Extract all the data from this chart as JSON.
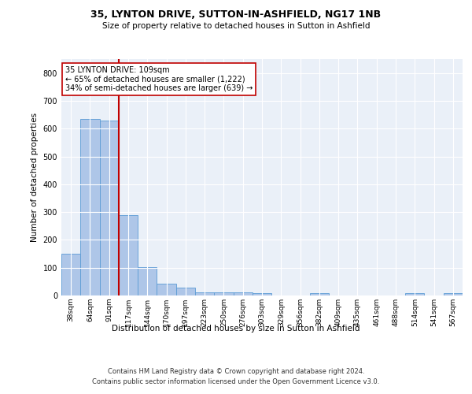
{
  "title1": "35, LYNTON DRIVE, SUTTON-IN-ASHFIELD, NG17 1NB",
  "title2": "Size of property relative to detached houses in Sutton in Ashfield",
  "xlabel": "Distribution of detached houses by size in Sutton in Ashfield",
  "ylabel": "Number of detached properties",
  "footer1": "Contains HM Land Registry data © Crown copyright and database right 2024.",
  "footer2": "Contains public sector information licensed under the Open Government Licence v3.0.",
  "bar_labels": [
    "38sqm",
    "64sqm",
    "91sqm",
    "117sqm",
    "144sqm",
    "170sqm",
    "197sqm",
    "223sqm",
    "250sqm",
    "276sqm",
    "303sqm",
    "329sqm",
    "356sqm",
    "382sqm",
    "409sqm",
    "435sqm",
    "461sqm",
    "488sqm",
    "514sqm",
    "541sqm",
    "567sqm"
  ],
  "bar_values": [
    150,
    635,
    628,
    290,
    103,
    42,
    28,
    12,
    12,
    10,
    9,
    0,
    0,
    8,
    0,
    0,
    0,
    0,
    8,
    0,
    8
  ],
  "bar_color": "#aec6e8",
  "bar_edgecolor": "#5b9bd5",
  "vline_x": 2.5,
  "vline_color": "#c00000",
  "annotation_text": "35 LYNTON DRIVE: 109sqm\n← 65% of detached houses are smaller (1,222)\n34% of semi-detached houses are larger (639) →",
  "annotation_box_color": "#ffffff",
  "annotation_box_edgecolor": "#c00000",
  "ylim": [
    0,
    850
  ],
  "yticks": [
    0,
    100,
    200,
    300,
    400,
    500,
    600,
    700,
    800
  ],
  "bg_color": "#eaf0f8",
  "plot_bg_color": "#eaf0f8"
}
